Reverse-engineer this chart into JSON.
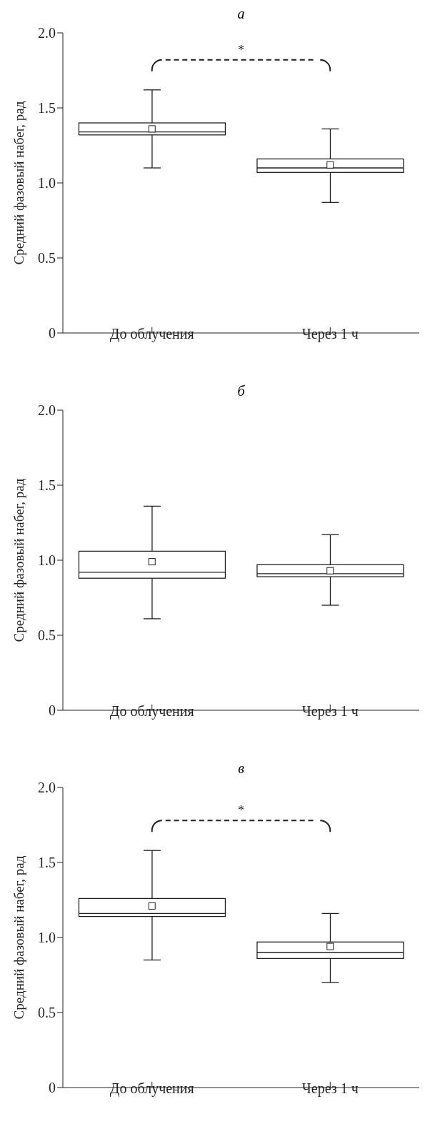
{
  "chart_data": [
    {
      "type": "box",
      "title": "а",
      "ylabel": "Средний фазовый набег, рад",
      "categories": [
        "До облучения",
        "Через 1 ч"
      ],
      "ylim": [
        0,
        2.0
      ],
      "yticks": [
        {
          "value": 0,
          "label": "0"
        },
        {
          "value": 0.5,
          "label": "0.5"
        },
        {
          "value": 1.0,
          "label": "1.0"
        },
        {
          "value": 1.5,
          "label": "1.5"
        },
        {
          "value": 2.0,
          "label": "2.0"
        }
      ],
      "grid": false,
      "legend": false,
      "color": "#231f20",
      "boxes": [
        {
          "low": 1.1,
          "q1": 1.32,
          "median": 1.34,
          "q3": 1.4,
          "high": 1.62,
          "mean": 1.36
        },
        {
          "low": 0.87,
          "q1": 1.07,
          "median": 1.1,
          "q3": 1.16,
          "high": 1.36,
          "mean": 1.12
        }
      ],
      "annotations": [
        "*"
      ]
    },
    {
      "type": "box",
      "title": "б",
      "ylabel": "Средний фазовый набег, рад",
      "categories": [
        "До облучения",
        "Через 1 ч"
      ],
      "ylim": [
        0,
        2.0
      ],
      "yticks": [
        {
          "value": 0,
          "label": "0"
        },
        {
          "value": 0.5,
          "label": "0.5"
        },
        {
          "value": 1.0,
          "label": "1.0"
        },
        {
          "value": 1.5,
          "label": "1.5"
        },
        {
          "value": 2.0,
          "label": "2.0"
        }
      ],
      "grid": false,
      "legend": false,
      "color": "#231f20",
      "boxes": [
        {
          "low": 0.61,
          "q1": 0.88,
          "median": 0.92,
          "q3": 1.06,
          "high": 1.36,
          "mean": 0.99
        },
        {
          "low": 0.7,
          "q1": 0.89,
          "median": 0.91,
          "q3": 0.97,
          "high": 1.17,
          "mean": 0.93
        }
      ]
    },
    {
      "type": "box",
      "title": "в",
      "ylabel": "Средний фазовый набег, рад",
      "categories": [
        "До облучения",
        "Через 1 ч"
      ],
      "ylim": [
        0,
        2.0
      ],
      "yticks": [
        {
          "value": 0,
          "label": "0"
        },
        {
          "value": 0.5,
          "label": "0.5"
        },
        {
          "value": 1.0,
          "label": "1.0"
        },
        {
          "value": 1.5,
          "label": "1.5"
        },
        {
          "value": 2.0,
          "label": "2.0"
        }
      ],
      "grid": false,
      "legend": false,
      "color": "#231f20",
      "boxes": [
        {
          "low": 0.85,
          "q1": 1.14,
          "median": 1.16,
          "q3": 1.26,
          "high": 1.58,
          "mean": 1.21
        },
        {
          "low": 0.7,
          "q1": 0.86,
          "median": 0.9,
          "q3": 0.97,
          "high": 1.16,
          "mean": 0.94
        }
      ],
      "annotations": [
        "*"
      ]
    }
  ]
}
